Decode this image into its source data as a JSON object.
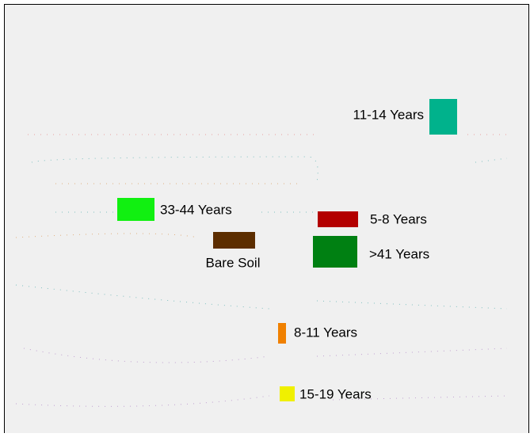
{
  "legend": {
    "items": [
      {
        "label": "11-14 Years",
        "color": "#00b28c"
      },
      {
        "label": "33-44 Years",
        "color": "#11f011"
      },
      {
        "label": "5-8 Years",
        "color": "#b30000"
      },
      {
        "label": ">41 Years",
        "color": "#008012"
      },
      {
        "label": "Bare Soil",
        "color": "#5c2d00"
      },
      {
        "label": "8-11 Years",
        "color": "#f08000"
      },
      {
        "label": "15-19 Years",
        "color": "#f0f000"
      }
    ]
  }
}
